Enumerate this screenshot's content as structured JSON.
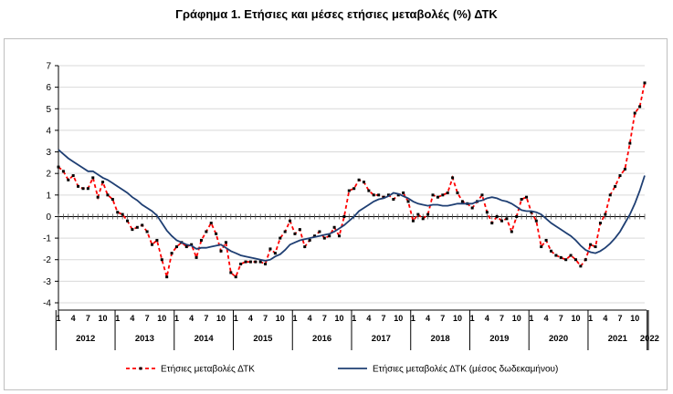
{
  "chart_data": {
    "type": "line",
    "title": "Γράφημα 1. Ετήσιες και μέσες ετήσιες μεταβολές (%) ΔΤΚ",
    "xlabel": "",
    "ylabel": "",
    "ylim": [
      -4,
      7
    ],
    "yticks": [
      "7",
      "6",
      "5",
      "4",
      "3",
      "2",
      "1",
      "0",
      "-1",
      "-2",
      "-3",
      "-4"
    ],
    "month_labels": [
      "1",
      "4",
      "7",
      "10"
    ],
    "years": [
      "2012",
      "2013",
      "2014",
      "2015",
      "2016",
      "2017",
      "2018",
      "2019",
      "2020",
      "2021",
      "2022"
    ],
    "final_month_label": "1",
    "series": [
      {
        "name": "Ετήσιες μεταβολές ΔΤΚ",
        "color": "#ff0000",
        "style": "dashed-with-markers",
        "values": [
          2.3,
          2.1,
          1.7,
          1.9,
          1.4,
          1.3,
          1.3,
          1.8,
          0.9,
          1.6,
          1.0,
          0.8,
          0.2,
          0.1,
          -0.2,
          -0.6,
          -0.5,
          -0.4,
          -0.7,
          -1.3,
          -1.1,
          -2.0,
          -2.8,
          -1.7,
          -1.4,
          -1.2,
          -1.4,
          -1.3,
          -1.9,
          -1.1,
          -0.7,
          -0.3,
          -0.8,
          -1.6,
          -1.2,
          -2.6,
          -2.8,
          -2.2,
          -2.1,
          -2.1,
          -2.1,
          -2.1,
          -2.2,
          -1.5,
          -1.7,
          -1.0,
          -0.7,
          -0.2,
          -0.8,
          -0.6,
          -1.4,
          -1.1,
          -0.9,
          -0.7,
          -1.0,
          -0.9,
          -0.5,
          -0.9,
          0.0,
          1.2,
          1.3,
          1.7,
          1.6,
          1.2,
          1.0,
          1.0,
          0.9,
          1.0,
          0.8,
          1.0,
          1.1,
          0.7,
          -0.2,
          0.1,
          -0.1,
          0.1,
          1.0,
          0.9,
          1.0,
          1.1,
          1.8,
          1.1,
          0.7,
          0.6,
          0.4,
          0.7,
          1.0,
          0.2,
          -0.3,
          0.0,
          -0.2,
          -0.1,
          -0.7,
          0.0,
          0.8,
          0.9,
          0.2,
          -0.2,
          -1.4,
          -1.1,
          -1.6,
          -1.8,
          -1.9,
          -2.0,
          -1.8,
          -2.0,
          -2.3,
          -2.0,
          -1.3,
          -1.4,
          -0.3,
          0.1,
          1.0,
          1.4,
          1.9,
          2.2,
          3.4,
          4.8,
          5.1,
          6.2
        ]
      },
      {
        "name": "Ετήσιες μεταβολές ΔΤΚ (μέσος δωδεκαμήνου)",
        "color": "#1f3f73",
        "style": "solid",
        "values": [
          3.1,
          2.9,
          2.7,
          2.55,
          2.4,
          2.25,
          2.1,
          2.1,
          1.95,
          1.8,
          1.7,
          1.55,
          1.4,
          1.25,
          1.1,
          0.9,
          0.75,
          0.55,
          0.4,
          0.25,
          0.05,
          -0.3,
          -0.65,
          -0.9,
          -1.1,
          -1.2,
          -1.3,
          -1.35,
          -1.5,
          -1.45,
          -1.45,
          -1.4,
          -1.35,
          -1.3,
          -1.45,
          -1.6,
          -1.7,
          -1.8,
          -1.85,
          -1.9,
          -1.95,
          -2.0,
          -2.05,
          -2.0,
          -1.85,
          -1.75,
          -1.55,
          -1.3,
          -1.2,
          -1.1,
          -1.05,
          -1.0,
          -0.95,
          -0.9,
          -0.85,
          -0.8,
          -0.7,
          -0.55,
          -0.4,
          -0.2,
          0.0,
          0.25,
          0.4,
          0.55,
          0.7,
          0.8,
          0.85,
          0.95,
          1.1,
          1.05,
          0.95,
          0.85,
          0.7,
          0.6,
          0.55,
          0.5,
          0.55,
          0.55,
          0.5,
          0.5,
          0.55,
          0.6,
          0.6,
          0.6,
          0.6,
          0.7,
          0.75,
          0.85,
          0.9,
          0.85,
          0.75,
          0.7,
          0.6,
          0.45,
          0.3,
          0.25,
          0.25,
          0.2,
          0.1,
          -0.1,
          -0.3,
          -0.45,
          -0.6,
          -0.75,
          -0.9,
          -1.1,
          -1.35,
          -1.55,
          -1.65,
          -1.7,
          -1.6,
          -1.45,
          -1.25,
          -1.0,
          -0.7,
          -0.3,
          0.1,
          0.6,
          1.2,
          1.9
        ]
      }
    ],
    "legend": [
      "Ετήσιες μεταβολές ΔΤΚ",
      "Ετήσιες μεταβολές ΔΤΚ (μέσος δωδεκαμήνου)"
    ],
    "legend_position": "bottom"
  }
}
